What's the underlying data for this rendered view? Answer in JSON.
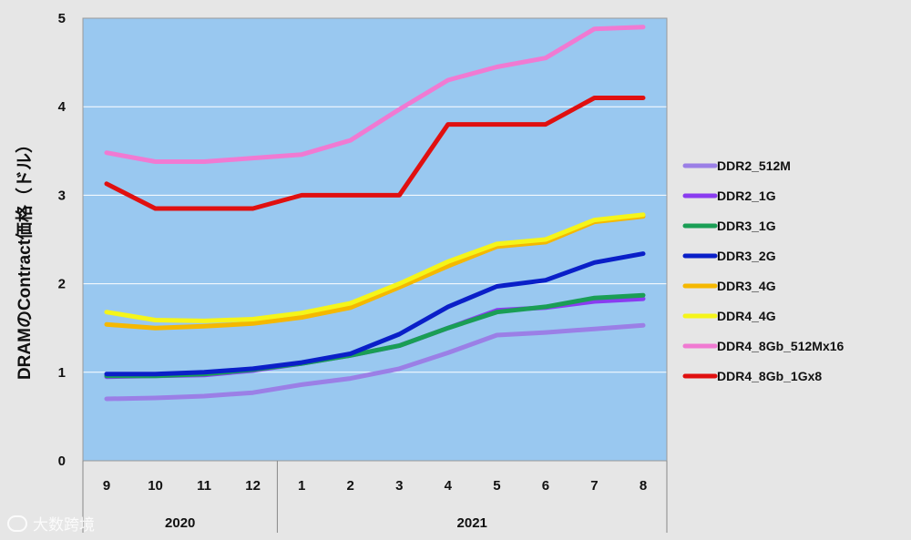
{
  "chart_data": {
    "type": "line",
    "title": "",
    "ylabel": "DRAMのContract価格（ドル）",
    "xlabel": "",
    "ylim": [
      0,
      5
    ],
    "yticks": [
      "0",
      "1",
      "2",
      "3",
      "4",
      "5"
    ],
    "categories": [
      "9",
      "10",
      "11",
      "12",
      "1",
      "2",
      "3",
      "4",
      "5",
      "6",
      "7",
      "8"
    ],
    "year_groups": [
      {
        "label": "2020",
        "start": 0,
        "end": 3
      },
      {
        "label": "2021",
        "start": 4,
        "end": 11
      }
    ],
    "grid": true,
    "legend_position": "right",
    "series": [
      {
        "name": "DDR2_512M",
        "color": "#9b7fe6",
        "values": [
          0.7,
          0.71,
          0.73,
          0.77,
          0.86,
          0.93,
          1.04,
          1.22,
          1.42,
          1.45,
          1.49,
          1.53
        ]
      },
      {
        "name": "DDR2_1G",
        "color": "#8a3cf0",
        "values": [
          0.95,
          0.96,
          0.97,
          1.02,
          1.1,
          1.19,
          1.3,
          1.5,
          1.7,
          1.73,
          1.8,
          1.83
        ]
      },
      {
        "name": "DDR3_1G",
        "color": "#1a9e55",
        "values": [
          0.96,
          0.96,
          0.98,
          1.03,
          1.1,
          1.19,
          1.3,
          1.5,
          1.68,
          1.74,
          1.84,
          1.87
        ]
      },
      {
        "name": "DDR3_2G",
        "color": "#0a1fc8",
        "values": [
          0.98,
          0.98,
          1.0,
          1.04,
          1.11,
          1.21,
          1.43,
          1.74,
          1.97,
          2.04,
          2.24,
          2.34
        ]
      },
      {
        "name": "DDR3_4G",
        "color": "#f5b800",
        "values": [
          1.54,
          1.5,
          1.52,
          1.55,
          1.62,
          1.73,
          1.96,
          2.2,
          2.42,
          2.47,
          2.7,
          2.76
        ]
      },
      {
        "name": "DDR4_4G",
        "color": "#f5f51a",
        "values": [
          1.68,
          1.59,
          1.58,
          1.6,
          1.67,
          1.78,
          2.0,
          2.25,
          2.45,
          2.5,
          2.72,
          2.78
        ]
      },
      {
        "name": "DDR4_8Gb_512Mx16",
        "color": "#f07ad2",
        "values": [
          3.48,
          3.38,
          3.38,
          3.42,
          3.46,
          3.62,
          3.97,
          4.3,
          4.45,
          4.55,
          4.88,
          4.9
        ]
      },
      {
        "name": "DDR4_8Gb_1Gx8",
        "color": "#e01010",
        "values": [
          3.13,
          2.85,
          2.85,
          2.85,
          3.0,
          3.0,
          3.0,
          3.8,
          3.8,
          3.8,
          4.1,
          4.1
        ]
      }
    ]
  },
  "watermark": {
    "text": "大数跨境"
  }
}
